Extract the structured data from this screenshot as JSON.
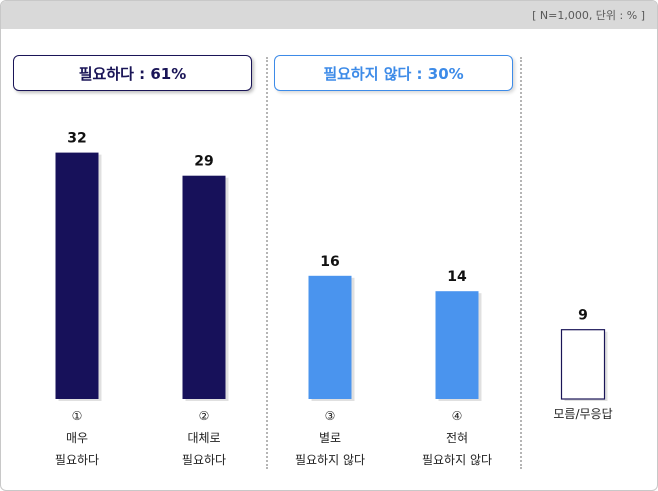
{
  "unit_note": "[ N=1,000, 단위 : % ]",
  "groups": [
    {
      "label": "필요하다 : 61%"
    },
    {
      "label": "필요하지 않다 : 30%"
    }
  ],
  "chart_data": {
    "type": "bar",
    "categories": [
      {
        "num": "①",
        "lines": [
          "매우",
          "필요하다"
        ]
      },
      {
        "num": "②",
        "lines": [
          "대체로",
          "필요하다"
        ]
      },
      {
        "num": "③",
        "lines": [
          "별로",
          "필요하지 않다"
        ]
      },
      {
        "num": "④",
        "lines": [
          "전혀",
          "필요하지 않다"
        ]
      },
      {
        "num": "",
        "lines": [
          "모름/무응답"
        ]
      }
    ],
    "values": [
      32,
      29,
      16,
      14,
      9
    ],
    "value_labels": [
      "32",
      "29",
      "16",
      "14",
      "9"
    ],
    "ylim": [
      0,
      35
    ],
    "colors": [
      "#17115a",
      "#17115a",
      "#4a94ee",
      "#4a94ee",
      "#ffffff"
    ],
    "grid": false
  }
}
